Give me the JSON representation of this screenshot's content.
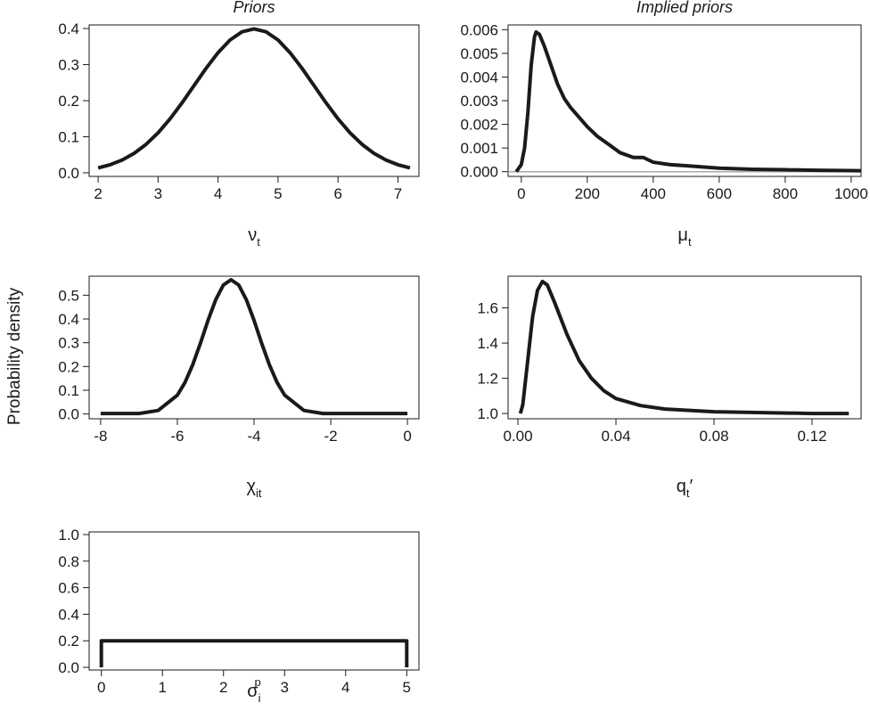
{
  "shared_ylabel": "Probability density",
  "chart_data": [
    {
      "type": "line",
      "title": "Priors",
      "xlabel": {
        "text": "ν",
        "sub": "t"
      },
      "color": "#1a1a1a",
      "x": [
        2,
        2.2,
        2.4,
        2.6,
        2.8,
        3.0,
        3.2,
        3.4,
        3.6,
        3.8,
        4.0,
        4.2,
        4.4,
        4.6,
        4.8,
        5.0,
        5.2,
        5.4,
        5.6,
        5.8,
        6.0,
        6.2,
        6.4,
        6.6,
        6.8,
        7.0,
        7.2
      ],
      "values": [
        0.0136,
        0.0224,
        0.0355,
        0.054,
        0.079,
        0.1109,
        0.1497,
        0.1942,
        0.242,
        0.2897,
        0.3332,
        0.3683,
        0.391,
        0.3989,
        0.391,
        0.3683,
        0.3332,
        0.2897,
        0.242,
        0.1942,
        0.1497,
        0.1109,
        0.079,
        0.054,
        0.0355,
        0.0224,
        0.0136
      ],
      "xlim": [
        1.85,
        7.35
      ],
      "ylim": [
        -0.01,
        0.41
      ],
      "xticks": [
        2,
        3,
        4,
        5,
        6,
        7
      ],
      "yticks": [
        {
          "value": 0,
          "label": "0.0"
        },
        0.1,
        0.2,
        0.3,
        0.4
      ]
    },
    {
      "type": "line",
      "title": "Implied priors",
      "xlabel": {
        "text": "μ",
        "sub": "t"
      },
      "color": "#1a1a1a",
      "x": [
        -15,
        0,
        10,
        20,
        30,
        40,
        45,
        55,
        70,
        90,
        110,
        130,
        150,
        175,
        200,
        230,
        260,
        300,
        340,
        370,
        400,
        450,
        500,
        600,
        700,
        800,
        900,
        1030
      ],
      "values": [
        0.0,
        0.0003,
        0.001,
        0.0025,
        0.0045,
        0.0057,
        0.0059,
        0.0058,
        0.0053,
        0.0045,
        0.0037,
        0.0031,
        0.0027,
        0.0023,
        0.0019,
        0.0015,
        0.0012,
        0.0008,
        0.0006,
        0.0006,
        0.0004,
        0.0003,
        0.00025,
        0.00015,
        0.0001,
        8e-05,
        6e-05,
        4e-05
      ],
      "hline": {
        "value": 0,
        "color": "#aaaaaa"
      },
      "xlim": [
        -40,
        1030
      ],
      "ylim": [
        -0.0002,
        0.0062
      ],
      "xticks": [
        0,
        200,
        400,
        600,
        800,
        1000
      ],
      "yticks": [
        {
          "value": 0,
          "label": "0.000"
        },
        {
          "value": 0.001,
          "label": "0.001"
        },
        {
          "value": 0.002,
          "label": "0.002"
        },
        {
          "value": 0.003,
          "label": "0.003"
        },
        {
          "value": 0.004,
          "label": "0.004"
        },
        {
          "value": 0.005,
          "label": "0.005"
        },
        {
          "value": 0.006,
          "label": "0.006"
        }
      ]
    },
    {
      "type": "line",
      "xlabel": {
        "text": "χ",
        "sub": "it"
      },
      "color": "#1a1a1a",
      "x": [
        -8,
        -7,
        -6.5,
        -6,
        -5.8,
        -5.6,
        -5.4,
        -5.2,
        -5.0,
        -4.8,
        -4.6,
        -4.4,
        -4.2,
        -4.0,
        -3.8,
        -3.6,
        -3.4,
        -3.2,
        -2.7,
        -2.2,
        -1,
        0
      ],
      "values": [
        0.002,
        0.002,
        0.015,
        0.079,
        0.133,
        0.207,
        0.297,
        0.394,
        0.481,
        0.543,
        0.565,
        0.543,
        0.481,
        0.394,
        0.297,
        0.207,
        0.133,
        0.079,
        0.015,
        0.002,
        0.002,
        0.002
      ],
      "xlim": [
        -8.3,
        0.3
      ],
      "ylim": [
        -0.02,
        0.58
      ],
      "xticks": [
        -8,
        -6,
        -4,
        -2,
        0
      ],
      "yticks": [
        {
          "value": 0,
          "label": "0.0"
        },
        0.1,
        0.2,
        0.3,
        0.4,
        0.5
      ]
    },
    {
      "type": "line",
      "xlabel": {
        "text": "q",
        "sub": "t",
        "after": "′"
      },
      "color": "#1a1a1a",
      "x": [
        0.001,
        0.002,
        0.004,
        0.006,
        0.008,
        0.01,
        0.012,
        0.015,
        0.02,
        0.025,
        0.03,
        0.035,
        0.04,
        0.05,
        0.06,
        0.08,
        0.1,
        0.12,
        0.135
      ],
      "values": [
        1.0,
        1.05,
        1.3,
        1.55,
        1.7,
        1.75,
        1.73,
        1.63,
        1.45,
        1.3,
        1.2,
        1.13,
        1.085,
        1.045,
        1.025,
        1.01,
        1.005,
        1.0,
        1.0
      ],
      "xlim": [
        -0.004,
        0.14
      ],
      "ylim": [
        0.97,
        1.78
      ],
      "xticks": [
        {
          "value": 0,
          "label": "0.00"
        },
        0.04,
        0.08,
        0.12
      ],
      "yticks": [
        {
          "value": 1,
          "label": "1.0"
        },
        1.2,
        1.4,
        1.6
      ]
    },
    {
      "type": "line",
      "xlabel": {
        "text": "σ",
        "sub": "i",
        "sup": "p"
      },
      "color": "#1a1a1a",
      "x": [
        0,
        0,
        5,
        5
      ],
      "values": [
        0,
        0.2,
        0.2,
        0
      ],
      "xlim": [
        -0.2,
        5.2
      ],
      "ylim": [
        -0.02,
        1.02
      ],
      "xticks": [
        0,
        1,
        2,
        3,
        4,
        5
      ],
      "yticks": [
        {
          "value": 0,
          "label": "0.0"
        },
        0.2,
        0.4,
        0.6,
        0.8,
        {
          "value": 1,
          "label": "1.0"
        }
      ]
    }
  ]
}
